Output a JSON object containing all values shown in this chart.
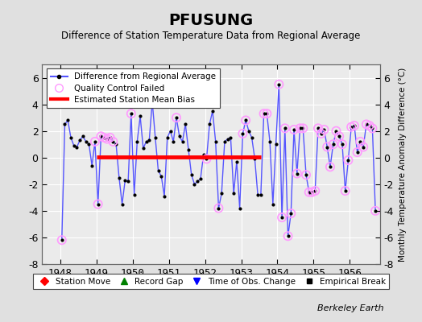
{
  "title": "PFUSUNG",
  "subtitle": "Difference of Station Temperature Data from Regional Average",
  "ylabel": "Monthly Temperature Anomaly Difference (°C)",
  "credit": "Berkeley Earth",
  "xlim": [
    1947.5,
    1956.83
  ],
  "ylim": [
    -8,
    7
  ],
  "yticks": [
    -8,
    -6,
    -4,
    -2,
    0,
    2,
    4,
    6
  ],
  "bias_line_y": 0.05,
  "bias_line_xstart": 1949.0,
  "bias_line_xend": 1953.55,
  "background_color": "#e0e0e0",
  "plot_bg_color": "#ebebeb",
  "line_color": "#5555ff",
  "marker_color": "#000000",
  "qc_marker_color": "#ff99ff",
  "bias_color": "#ff0000",
  "xticks": [
    1948,
    1949,
    1950,
    1951,
    1952,
    1953,
    1954,
    1955,
    1956
  ],
  "data": [
    [
      1948.042,
      -6.2
    ],
    [
      1948.125,
      2.5
    ],
    [
      1948.208,
      2.8
    ],
    [
      1948.292,
      1.5
    ],
    [
      1948.375,
      0.9
    ],
    [
      1948.458,
      0.8
    ],
    [
      1948.542,
      1.3
    ],
    [
      1948.625,
      1.6
    ],
    [
      1948.708,
      1.2
    ],
    [
      1948.792,
      1.0
    ],
    [
      1948.875,
      -0.6
    ],
    [
      1948.958,
      1.2
    ],
    [
      1949.042,
      -3.5
    ],
    [
      1949.125,
      1.6
    ],
    [
      1949.208,
      1.5
    ],
    [
      1949.292,
      1.4
    ],
    [
      1949.375,
      1.5
    ],
    [
      1949.458,
      1.2
    ],
    [
      1949.542,
      1.0
    ],
    [
      1949.625,
      -1.5
    ],
    [
      1949.708,
      -3.5
    ],
    [
      1949.792,
      -1.7
    ],
    [
      1949.875,
      -1.8
    ],
    [
      1949.958,
      3.3
    ],
    [
      1950.042,
      -2.8
    ],
    [
      1950.125,
      1.2
    ],
    [
      1950.208,
      3.1
    ],
    [
      1950.292,
      0.7
    ],
    [
      1950.375,
      1.2
    ],
    [
      1950.458,
      1.3
    ],
    [
      1950.542,
      4.2
    ],
    [
      1950.625,
      1.5
    ],
    [
      1950.708,
      -1.0
    ],
    [
      1950.792,
      -1.4
    ],
    [
      1950.875,
      -2.9
    ],
    [
      1950.958,
      1.5
    ],
    [
      1951.042,
      2.0
    ],
    [
      1951.125,
      1.2
    ],
    [
      1951.208,
      3.0
    ],
    [
      1951.292,
      1.6
    ],
    [
      1951.375,
      1.2
    ],
    [
      1951.458,
      2.5
    ],
    [
      1951.542,
      0.6
    ],
    [
      1951.625,
      -1.3
    ],
    [
      1951.708,
      -2.0
    ],
    [
      1951.792,
      -1.8
    ],
    [
      1951.875,
      -1.6
    ],
    [
      1951.958,
      0.2
    ],
    [
      1952.042,
      -0.1
    ],
    [
      1952.125,
      2.5
    ],
    [
      1952.208,
      3.5
    ],
    [
      1952.292,
      1.2
    ],
    [
      1952.375,
      -3.8
    ],
    [
      1952.458,
      -2.7
    ],
    [
      1952.542,
      1.2
    ],
    [
      1952.625,
      1.4
    ],
    [
      1952.708,
      1.5
    ],
    [
      1952.792,
      -2.7
    ],
    [
      1952.875,
      -0.3
    ],
    [
      1952.958,
      -3.8
    ],
    [
      1953.042,
      1.8
    ],
    [
      1953.125,
      2.8
    ],
    [
      1953.208,
      2.0
    ],
    [
      1953.292,
      1.5
    ],
    [
      1953.375,
      -0.1
    ],
    [
      1953.458,
      -2.8
    ],
    [
      1953.542,
      -2.8
    ],
    [
      1953.625,
      3.3
    ],
    [
      1953.708,
      3.3
    ],
    [
      1953.792,
      1.2
    ],
    [
      1953.875,
      -3.5
    ],
    [
      1953.958,
      1.0
    ],
    [
      1954.042,
      5.5
    ],
    [
      1954.125,
      -4.5
    ],
    [
      1954.208,
      2.2
    ],
    [
      1954.292,
      -5.9
    ],
    [
      1954.375,
      -4.2
    ],
    [
      1954.458,
      2.1
    ],
    [
      1954.542,
      -1.2
    ],
    [
      1954.625,
      2.2
    ],
    [
      1954.708,
      2.2
    ],
    [
      1954.792,
      -1.3
    ],
    [
      1954.875,
      -2.6
    ],
    [
      1954.958,
      -2.6
    ],
    [
      1955.042,
      -2.5
    ],
    [
      1955.125,
      2.2
    ],
    [
      1955.208,
      1.8
    ],
    [
      1955.292,
      2.1
    ],
    [
      1955.375,
      0.8
    ],
    [
      1955.458,
      -0.7
    ],
    [
      1955.542,
      1.0
    ],
    [
      1955.625,
      2.0
    ],
    [
      1955.708,
      1.6
    ],
    [
      1955.792,
      1.0
    ],
    [
      1955.875,
      -2.5
    ],
    [
      1955.958,
      -0.2
    ],
    [
      1956.042,
      2.3
    ],
    [
      1956.125,
      2.4
    ],
    [
      1956.208,
      0.4
    ],
    [
      1956.292,
      1.2
    ],
    [
      1956.375,
      0.8
    ],
    [
      1956.458,
      2.5
    ],
    [
      1956.542,
      2.4
    ],
    [
      1956.625,
      2.2
    ],
    [
      1956.708,
      -4.0
    ]
  ],
  "qc_failed_x": [
    1948.042,
    1948.958,
    1949.042,
    1949.125,
    1949.208,
    1949.292,
    1949.375,
    1949.458,
    1949.958,
    1951.208,
    1952.042,
    1952.375,
    1953.042,
    1953.125,
    1953.625,
    1953.708,
    1954.042,
    1954.125,
    1954.208,
    1954.292,
    1954.375,
    1954.458,
    1954.542,
    1954.625,
    1954.708,
    1954.792,
    1954.875,
    1954.958,
    1955.042,
    1955.125,
    1955.208,
    1955.292,
    1955.375,
    1955.458,
    1955.542,
    1955.625,
    1955.708,
    1955.792,
    1955.875,
    1955.958,
    1956.042,
    1956.125,
    1956.208,
    1956.292,
    1956.375,
    1956.458,
    1956.542,
    1956.625,
    1956.708
  ],
  "qc_failed_y": [
    -6.2,
    1.2,
    -3.5,
    1.6,
    1.5,
    1.4,
    1.5,
    1.2,
    3.3,
    3.0,
    -0.1,
    -3.8,
    1.8,
    2.8,
    3.3,
    3.3,
    5.5,
    -4.5,
    2.2,
    -5.9,
    -4.2,
    2.1,
    -1.2,
    2.2,
    2.2,
    -1.3,
    -2.6,
    -2.6,
    -2.5,
    2.2,
    1.8,
    2.1,
    0.8,
    -0.7,
    1.0,
    2.0,
    1.6,
    1.0,
    -2.5,
    -0.2,
    2.3,
    2.4,
    0.4,
    1.2,
    0.8,
    2.5,
    2.4,
    2.2,
    -4.0
  ]
}
